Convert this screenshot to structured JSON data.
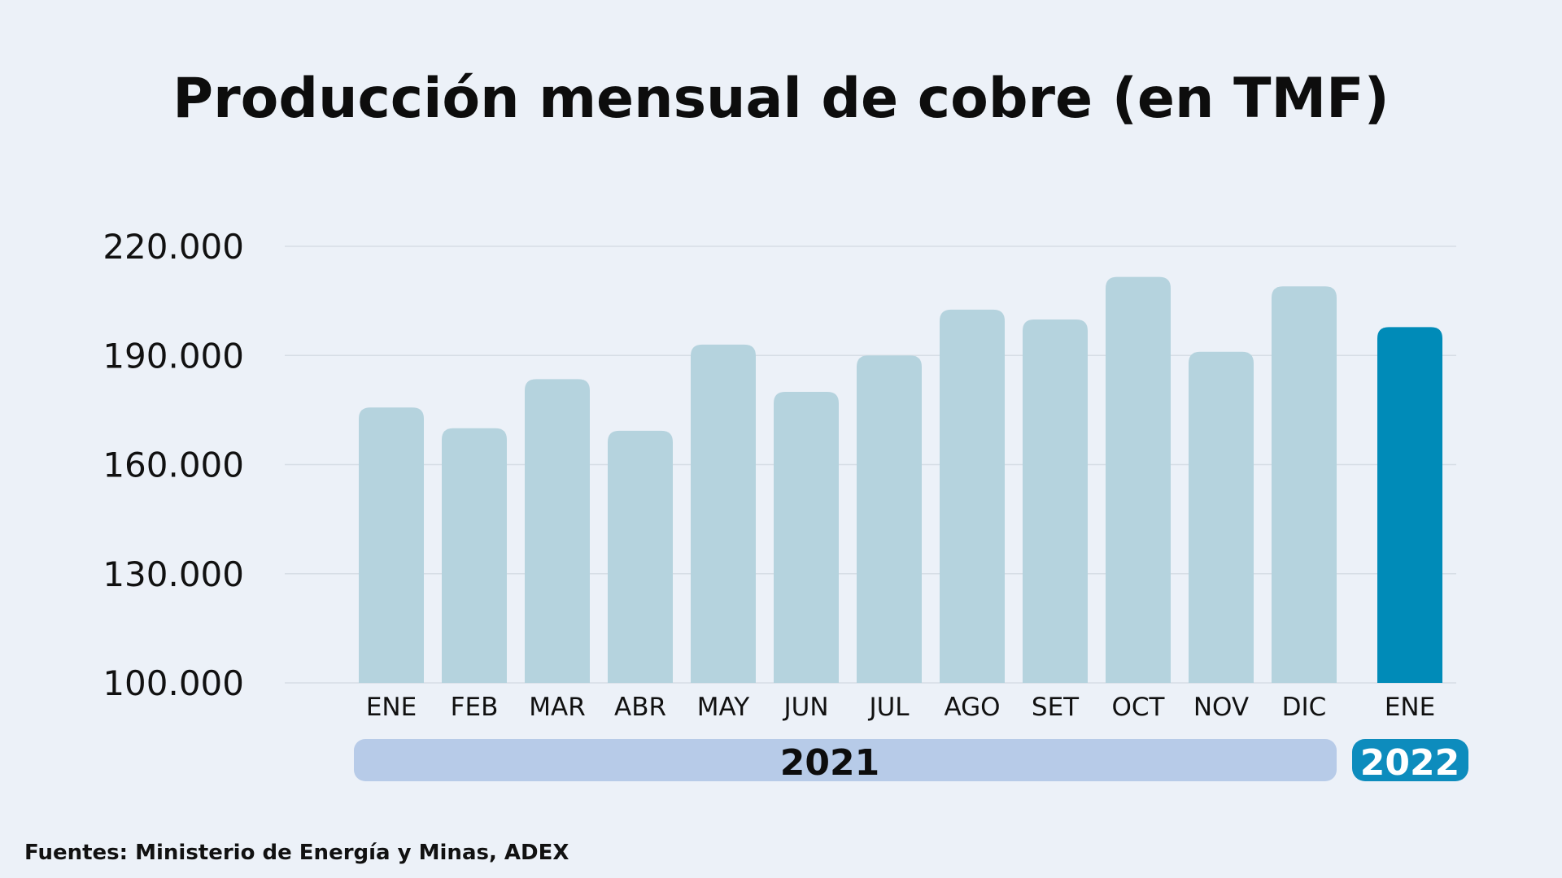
{
  "title": "Producción mensual de cobre (en TMF)",
  "source": "Fuentes: Ministerio de Energía y Minas, ADEX",
  "colors": {
    "background": "#ecf1f8",
    "bar_2021": "#b5d3de",
    "bar_2022": "#008bb8",
    "group_2021_band": "#b7cbe8",
    "group_2022_band": "#0d8cbd",
    "grid": "#d6dde5"
  },
  "chart_data": {
    "type": "bar",
    "title": "Producción mensual de cobre (en TMF)",
    "xlabel": "",
    "ylabel": "",
    "ylim": [
      100000,
      220000
    ],
    "yticks": [
      100000,
      130000,
      160000,
      190000,
      220000
    ],
    "ytick_labels": [
      "100.000",
      "130.000",
      "160.000",
      "190.000",
      "220.000"
    ],
    "grid": true,
    "categories": [
      "ENE",
      "FEB",
      "MAR",
      "ABR",
      "MAY",
      "JUN",
      "JUL",
      "AGO",
      "SET",
      "OCT",
      "NOV",
      "DIC",
      "ENE"
    ],
    "values": [
      175700,
      170000,
      183500,
      169300,
      193000,
      180000,
      190000,
      202600,
      199900,
      211600,
      191000,
      209000,
      197800
    ],
    "groups": [
      {
        "label": "2021",
        "start": 0,
        "end": 11
      },
      {
        "label": "2022",
        "start": 12,
        "end": 12
      }
    ]
  }
}
